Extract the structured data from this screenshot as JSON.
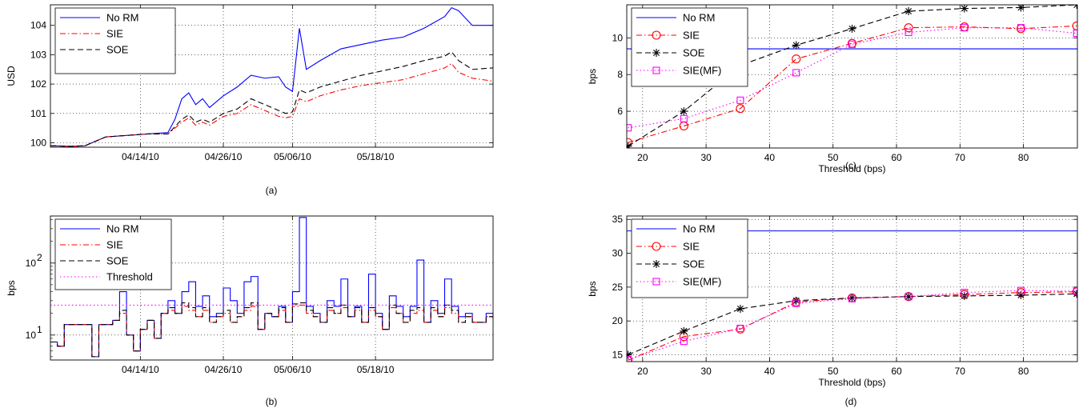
{
  "chart_data": [
    {
      "id": "a",
      "type": "line",
      "panel_label": "(a)",
      "ylabel": "USD",
      "xlabel": "",
      "x_tick_labels": [
        "04/14/10",
        "04/26/10",
        "05/06/10",
        "05/18/10"
      ],
      "x_tick_dates": [
        "2010-04-14",
        "2010-04-26",
        "2010-05-06",
        "2010-05-18"
      ],
      "xlim": [
        "2010-04-01",
        "2010-06-04"
      ],
      "ylim": [
        99.85,
        104.7
      ],
      "yticks": [
        100,
        101,
        102,
        103,
        104
      ],
      "grid": true,
      "legend": "top-left",
      "series": [
        {
          "name": "No RM",
          "color": "#0000ff",
          "dash": "solid",
          "marker": "none",
          "x": [
            "2010-04-01",
            "2010-04-04",
            "2010-04-06",
            "2010-04-09",
            "2010-04-12",
            "2010-04-15",
            "2010-04-18",
            "2010-04-19",
            "2010-04-20",
            "2010-04-21",
            "2010-04-22",
            "2010-04-23",
            "2010-04-24",
            "2010-04-26",
            "2010-04-28",
            "2010-04-30",
            "2010-05-02",
            "2010-05-04",
            "2010-05-05",
            "2010-05-06",
            "2010-05-07",
            "2010-05-08",
            "2010-05-10",
            "2010-05-13",
            "2010-05-16",
            "2010-05-19",
            "2010-05-22",
            "2010-05-25",
            "2010-05-28",
            "2010-05-29",
            "2010-05-30",
            "2010-06-01",
            "2010-06-04"
          ],
          "y": [
            99.9,
            99.88,
            99.9,
            100.2,
            100.25,
            100.3,
            100.35,
            100.8,
            101.5,
            101.7,
            101.3,
            101.5,
            101.2,
            101.6,
            101.9,
            102.3,
            102.2,
            102.25,
            101.9,
            101.75,
            103.9,
            102.5,
            102.8,
            103.2,
            103.35,
            103.5,
            103.6,
            103.9,
            104.3,
            104.6,
            104.5,
            104.0,
            104.0
          ]
        },
        {
          "name": "SIE",
          "color": "#ff0000",
          "dash": "dashdot",
          "marker": "none",
          "x": [
            "2010-04-01",
            "2010-04-04",
            "2010-04-06",
            "2010-04-09",
            "2010-04-12",
            "2010-04-15",
            "2010-04-18",
            "2010-04-19",
            "2010-04-20",
            "2010-04-21",
            "2010-04-22",
            "2010-04-23",
            "2010-04-24",
            "2010-04-26",
            "2010-04-28",
            "2010-04-30",
            "2010-05-02",
            "2010-05-04",
            "2010-05-05",
            "2010-05-06",
            "2010-05-07",
            "2010-05-08",
            "2010-05-10",
            "2010-05-13",
            "2010-05-16",
            "2010-05-19",
            "2010-05-22",
            "2010-05-25",
            "2010-05-28",
            "2010-05-29",
            "2010-05-30",
            "2010-06-01",
            "2010-06-04"
          ],
          "y": [
            99.9,
            99.88,
            99.9,
            100.2,
            100.25,
            100.3,
            100.3,
            100.5,
            100.7,
            100.85,
            100.6,
            100.7,
            100.6,
            100.9,
            101.0,
            101.3,
            101.1,
            100.9,
            100.85,
            100.9,
            101.5,
            101.4,
            101.6,
            101.8,
            101.95,
            102.05,
            102.15,
            102.35,
            102.55,
            102.7,
            102.4,
            102.2,
            102.1
          ]
        },
        {
          "name": "SOE",
          "color": "#000000",
          "dash": "dashed",
          "marker": "none",
          "x": [
            "2010-04-01",
            "2010-04-04",
            "2010-04-06",
            "2010-04-09",
            "2010-04-12",
            "2010-04-15",
            "2010-04-18",
            "2010-04-19",
            "2010-04-20",
            "2010-04-21",
            "2010-04-22",
            "2010-04-23",
            "2010-04-24",
            "2010-04-26",
            "2010-04-28",
            "2010-04-30",
            "2010-05-02",
            "2010-05-04",
            "2010-05-05",
            "2010-05-06",
            "2010-05-07",
            "2010-05-08",
            "2010-05-10",
            "2010-05-13",
            "2010-05-16",
            "2010-05-19",
            "2010-05-22",
            "2010-05-25",
            "2010-05-28",
            "2010-05-29",
            "2010-05-30",
            "2010-06-01",
            "2010-06-04"
          ],
          "y": [
            99.9,
            99.88,
            99.9,
            100.2,
            100.25,
            100.3,
            100.3,
            100.55,
            100.8,
            100.95,
            100.7,
            100.8,
            100.7,
            101.0,
            101.15,
            101.5,
            101.3,
            101.1,
            101.0,
            101.05,
            101.8,
            101.7,
            101.9,
            102.1,
            102.3,
            102.45,
            102.6,
            102.8,
            102.95,
            103.1,
            102.8,
            102.5,
            102.55
          ]
        }
      ]
    },
    {
      "id": "b",
      "type": "line",
      "panel_label": "(b)",
      "ylabel": "bps",
      "xlabel": "",
      "yscale": "log",
      "x_tick_labels": [
        "04/14/10",
        "04/26/10",
        "05/06/10",
        "05/18/10"
      ],
      "x_tick_dates": [
        "2010-04-14",
        "2010-04-26",
        "2010-05-06",
        "2010-05-18"
      ],
      "xlim": [
        "2010-04-01",
        "2010-06-04"
      ],
      "ylim": [
        4.5,
        450
      ],
      "ytick_values": [
        10,
        100
      ],
      "ytick_bases": [
        "10",
        "10"
      ],
      "ytick_exps": [
        "1",
        "2"
      ],
      "grid": true,
      "legend": "top-left",
      "series": [
        {
          "name": "No RM",
          "color": "#0000ff",
          "dash": "solid",
          "marker": "none",
          "x": [
            "2010-04-01",
            "2010-04-02",
            "2010-04-03",
            "2010-04-05",
            "2010-04-06",
            "2010-04-07",
            "2010-04-08",
            "2010-04-09",
            "2010-04-10",
            "2010-04-11",
            "2010-04-12",
            "2010-04-13",
            "2010-04-14",
            "2010-04-15",
            "2010-04-16",
            "2010-04-17",
            "2010-04-18",
            "2010-04-19",
            "2010-04-20",
            "2010-04-21",
            "2010-04-22",
            "2010-04-23",
            "2010-04-24",
            "2010-04-25",
            "2010-04-26",
            "2010-04-27",
            "2010-04-28",
            "2010-04-29",
            "2010-04-30",
            "2010-05-01",
            "2010-05-02",
            "2010-05-03",
            "2010-05-04",
            "2010-05-05",
            "2010-05-06",
            "2010-05-07",
            "2010-05-08",
            "2010-05-09",
            "2010-05-10",
            "2010-05-11",
            "2010-05-12",
            "2010-05-13",
            "2010-05-14",
            "2010-05-15",
            "2010-05-16",
            "2010-05-17",
            "2010-05-18",
            "2010-05-19",
            "2010-05-20",
            "2010-05-21",
            "2010-05-22",
            "2010-05-23",
            "2010-05-24",
            "2010-05-25",
            "2010-05-26",
            "2010-05-27",
            "2010-05-28",
            "2010-05-29",
            "2010-05-30",
            "2010-05-31",
            "2010-06-01",
            "2010-06-02",
            "2010-06-03",
            "2010-06-04"
          ],
          "y": [
            8,
            7,
            14,
            14,
            14,
            5,
            14,
            14,
            16,
            40,
            10,
            6,
            12,
            16,
            9,
            20,
            30,
            20,
            40,
            55,
            25,
            35,
            18,
            20,
            45,
            30,
            20,
            55,
            65,
            12,
            20,
            18,
            25,
            15,
            40,
            430,
            25,
            20,
            15,
            30,
            25,
            60,
            18,
            25,
            15,
            70,
            20,
            12,
            35,
            25,
            18,
            25,
            110,
            15,
            30,
            20,
            60,
            25,
            18,
            20,
            15,
            15,
            20,
            18
          ]
        },
        {
          "name": "SIE",
          "color": "#ff0000",
          "dash": "dashdot",
          "marker": "none",
          "x": [
            "2010-04-01",
            "2010-04-02",
            "2010-04-03",
            "2010-04-05",
            "2010-04-06",
            "2010-04-07",
            "2010-04-08",
            "2010-04-09",
            "2010-04-10",
            "2010-04-11",
            "2010-04-12",
            "2010-04-13",
            "2010-04-14",
            "2010-04-15",
            "2010-04-16",
            "2010-04-17",
            "2010-04-18",
            "2010-04-19",
            "2010-04-20",
            "2010-04-21",
            "2010-04-22",
            "2010-04-23",
            "2010-04-24",
            "2010-04-25",
            "2010-04-26",
            "2010-04-27",
            "2010-04-28",
            "2010-04-29",
            "2010-04-30",
            "2010-05-01",
            "2010-05-02",
            "2010-05-03",
            "2010-05-04",
            "2010-05-05",
            "2010-05-06",
            "2010-05-07",
            "2010-05-08",
            "2010-05-09",
            "2010-05-10",
            "2010-05-11",
            "2010-05-12",
            "2010-05-13",
            "2010-05-14",
            "2010-05-15",
            "2010-05-16",
            "2010-05-17",
            "2010-05-18",
            "2010-05-19",
            "2010-05-20",
            "2010-05-21",
            "2010-05-22",
            "2010-05-23",
            "2010-05-24",
            "2010-05-25",
            "2010-05-26",
            "2010-05-27",
            "2010-05-28",
            "2010-05-29",
            "2010-05-30",
            "2010-05-31",
            "2010-06-01",
            "2010-06-02",
            "2010-06-03",
            "2010-06-04"
          ],
          "y": [
            8,
            7,
            14,
            14,
            14,
            5,
            14,
            14,
            16,
            20,
            10,
            6,
            12,
            16,
            9,
            20,
            22,
            20,
            25,
            22,
            18,
            22,
            15,
            18,
            20,
            15,
            18,
            22,
            25,
            12,
            20,
            18,
            22,
            15,
            25,
            26,
            20,
            18,
            15,
            22,
            20,
            24,
            18,
            22,
            15,
            22,
            18,
            12,
            24,
            20,
            15,
            20,
            22,
            15,
            22,
            18,
            24,
            20,
            15,
            18,
            15,
            15,
            18,
            16
          ]
        },
        {
          "name": "SOE",
          "color": "#000000",
          "dash": "dashed",
          "marker": "none",
          "x": [
            "2010-04-01",
            "2010-04-02",
            "2010-04-03",
            "2010-04-05",
            "2010-04-06",
            "2010-04-07",
            "2010-04-08",
            "2010-04-09",
            "2010-04-10",
            "2010-04-11",
            "2010-04-12",
            "2010-04-13",
            "2010-04-14",
            "2010-04-15",
            "2010-04-16",
            "2010-04-17",
            "2010-04-18",
            "2010-04-19",
            "2010-04-20",
            "2010-04-21",
            "2010-04-22",
            "2010-04-23",
            "2010-04-24",
            "2010-04-25",
            "2010-04-26",
            "2010-04-27",
            "2010-04-28",
            "2010-04-29",
            "2010-04-30",
            "2010-05-01",
            "2010-05-02",
            "2010-05-03",
            "2010-05-04",
            "2010-05-05",
            "2010-05-06",
            "2010-05-07",
            "2010-05-08",
            "2010-05-09",
            "2010-05-10",
            "2010-05-11",
            "2010-05-12",
            "2010-05-13",
            "2010-05-14",
            "2010-05-15",
            "2010-05-16",
            "2010-05-17",
            "2010-05-18",
            "2010-05-19",
            "2010-05-20",
            "2010-05-21",
            "2010-05-22",
            "2010-05-23",
            "2010-05-24",
            "2010-05-25",
            "2010-05-26",
            "2010-05-27",
            "2010-05-28",
            "2010-05-29",
            "2010-05-30",
            "2010-05-31",
            "2010-06-01",
            "2010-06-02",
            "2010-06-03",
            "2010-06-04"
          ],
          "y": [
            8,
            7,
            14,
            14,
            14,
            5,
            14,
            14,
            16,
            22,
            10,
            6,
            12,
            16,
            9,
            20,
            24,
            20,
            28,
            24,
            18,
            24,
            15,
            18,
            22,
            15,
            18,
            24,
            28,
            12,
            20,
            18,
            24,
            15,
            27,
            28,
            22,
            18,
            15,
            24,
            20,
            26,
            18,
            24,
            15,
            24,
            18,
            12,
            26,
            20,
            15,
            22,
            24,
            15,
            24,
            18,
            26,
            22,
            15,
            18,
            15,
            15,
            18,
            16
          ]
        },
        {
          "name": "Threshold",
          "color": "#ff00ff",
          "dash": "dotted",
          "marker": "none",
          "x": [
            "2010-04-01",
            "2010-06-04"
          ],
          "y": [
            26,
            26
          ]
        }
      ]
    },
    {
      "id": "c",
      "type": "line",
      "panel_label": "(c)",
      "ylabel": "bps",
      "xlabel": "Threshold (bps)",
      "xlim": [
        17.5,
        88.5
      ],
      "ylim": [
        4.0,
        11.8
      ],
      "xticks": [
        20,
        30,
        40,
        50,
        60,
        70,
        80
      ],
      "yticks": [
        6,
        8,
        10
      ],
      "grid": true,
      "legend": "top-left",
      "series": [
        {
          "name": "No RM",
          "color": "#0000ff",
          "dash": "solid",
          "marker": "none",
          "x": [
            17.5,
            88.5
          ],
          "y": [
            9.4,
            9.4
          ]
        },
        {
          "name": "SIE",
          "color": "#ff0000",
          "dash": "dashdot",
          "marker": "circle",
          "x": [
            17.7,
            26.5,
            35.4,
            44.2,
            53.0,
            61.9,
            70.7,
            79.6,
            88.4
          ],
          "y": [
            4.3,
            5.2,
            6.15,
            8.85,
            9.7,
            10.55,
            10.6,
            10.5,
            10.65
          ]
        },
        {
          "name": "SOE",
          "color": "#000000",
          "dash": "dashed",
          "marker": "star",
          "x": [
            17.7,
            26.5,
            35.4,
            44.2,
            53.0,
            61.9,
            70.7,
            79.6,
            88.4
          ],
          "y": [
            4.1,
            6.0,
            8.5,
            9.6,
            10.5,
            11.45,
            11.6,
            11.65,
            11.8
          ]
        },
        {
          "name": "SIE(MF)",
          "color": "#ff00ff",
          "dash": "dotted",
          "marker": "square",
          "x": [
            17.7,
            26.5,
            35.4,
            44.2,
            53.0,
            61.9,
            70.7,
            79.6,
            88.4
          ],
          "y": [
            5.1,
            5.6,
            6.6,
            8.1,
            9.65,
            10.3,
            10.55,
            10.55,
            10.25
          ]
        }
      ]
    },
    {
      "id": "d",
      "type": "line",
      "panel_label": "(d)",
      "ylabel": "bps",
      "xlabel": "Threshold (bps)",
      "xlim": [
        17.5,
        88.5
      ],
      "ylim": [
        14,
        35.5
      ],
      "xticks": [
        20,
        30,
        40,
        50,
        60,
        70,
        80
      ],
      "yticks": [
        15,
        20,
        25,
        30,
        35
      ],
      "grid": true,
      "legend": "top-left",
      "series": [
        {
          "name": "No RM",
          "color": "#0000ff",
          "dash": "solid",
          "marker": "none",
          "x": [
            17.5,
            88.5
          ],
          "y": [
            33.3,
            33.3
          ]
        },
        {
          "name": "SIE",
          "color": "#ff0000",
          "dash": "dashdot",
          "marker": "circle",
          "x": [
            17.7,
            26.5,
            35.4,
            44.2,
            53.0,
            61.9,
            70.7,
            79.6,
            88.4
          ],
          "y": [
            14.2,
            17.7,
            18.8,
            22.8,
            23.4,
            23.6,
            23.9,
            24.2,
            24.3
          ]
        },
        {
          "name": "SOE",
          "color": "#000000",
          "dash": "dashed",
          "marker": "star",
          "x": [
            17.7,
            26.5,
            35.4,
            44.2,
            53.0,
            61.9,
            70.7,
            79.6,
            88.4
          ],
          "y": [
            15.0,
            18.5,
            21.8,
            23.0,
            23.4,
            23.6,
            23.7,
            23.8,
            24.0
          ]
        },
        {
          "name": "SIE(MF)",
          "color": "#ff00ff",
          "dash": "dotted",
          "marker": "square",
          "x": [
            17.7,
            26.5,
            35.4,
            44.2,
            53.0,
            61.9,
            70.7,
            79.6,
            88.4
          ],
          "y": [
            14.3,
            17.0,
            18.9,
            22.6,
            23.3,
            23.6,
            24.2,
            24.5,
            24.4
          ]
        }
      ]
    }
  ]
}
